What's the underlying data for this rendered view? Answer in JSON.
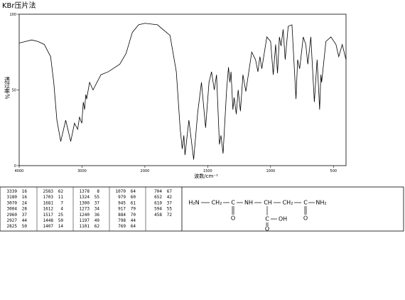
{
  "chart_data": {
    "type": "line",
    "title": "KBr压片法",
    "xlabel": "波数/cm⁻¹",
    "ylabel": "透过率%",
    "xlim": [
      4000,
      400
    ],
    "xticks": [
      4000,
      3000,
      2000,
      1500,
      1000,
      500
    ],
    "x_scale_break": 2000,
    "ylim": [
      0,
      100
    ],
    "yticks": [
      0,
      50,
      100
    ],
    "grid": false,
    "series": [
      {
        "name": "spectrum",
        "color": "#000000",
        "x": [
          4000,
          3900,
          3800,
          3700,
          3600,
          3500,
          3450,
          3400,
          3339,
          3260,
          3180,
          3120,
          3070,
          3040,
          3004,
          2980,
          2960,
          2940,
          2927,
          2880,
          2825,
          2700,
          2583,
          2400,
          2300,
          2200,
          2100,
          2000,
          1900,
          1800,
          1750,
          1720,
          1703,
          1690,
          1681,
          1650,
          1612,
          1580,
          1550,
          1517,
          1490,
          1470,
          1448,
          1430,
          1407,
          1395,
          1378,
          1350,
          1335,
          1324,
          1315,
          1300,
          1290,
          1273,
          1258,
          1240,
          1220,
          1197,
          1150,
          1120,
          1101,
          1085,
          1070,
          1030,
          1000,
          979,
          960,
          945,
          930,
          917,
          900,
          884,
          860,
          830,
          798,
          785,
          769,
          740,
          720,
          704,
          680,
          652,
          630,
          610,
          600,
          594,
          560,
          520,
          480,
          458,
          430,
          400
        ],
        "values": [
          81,
          82,
          83,
          82,
          80,
          72,
          55,
          30,
          16,
          30,
          16,
          28,
          24,
          32,
          28,
          42,
          37,
          47,
          44,
          55,
          50,
          60,
          62,
          67,
          74,
          88,
          93,
          94,
          93,
          86,
          62,
          25,
          11,
          20,
          7,
          30,
          4,
          35,
          55,
          25,
          55,
          62,
          50,
          60,
          14,
          20,
          8,
          50,
          65,
          55,
          62,
          37,
          45,
          34,
          50,
          36,
          60,
          49,
          75,
          70,
          62,
          72,
          64,
          85,
          82,
          60,
          80,
          61,
          85,
          79,
          90,
          70,
          92,
          93,
          44,
          70,
          64,
          85,
          80,
          67,
          85,
          42,
          70,
          37,
          60,
          55,
          82,
          85,
          80,
          72,
          80,
          70
        ]
      }
    ]
  },
  "table": {
    "rows": [
      [
        3339,
        16
      ],
      [
        3180,
        16
      ],
      [
        3070,
        24
      ],
      [
        3004,
        28
      ],
      [
        2960,
        37
      ],
      [
        2927,
        44
      ],
      [
        2825,
        50
      ],
      [
        2583,
        62
      ],
      [
        1703,
        11
      ],
      [
        1681,
        7
      ],
      [
        1612,
        4
      ],
      [
        1517,
        25
      ],
      [
        1448,
        50
      ],
      [
        1407,
        14
      ],
      [
        1378,
        8
      ],
      [
        1324,
        55
      ],
      [
        1300,
        37
      ],
      [
        1273,
        34
      ],
      [
        1240,
        36
      ],
      [
        1197,
        49
      ],
      [
        1101,
        62
      ],
      [
        1070,
        64
      ],
      [
        979,
        60
      ],
      [
        945,
        61
      ],
      [
        917,
        79
      ],
      [
        884,
        70
      ],
      [
        798,
        44
      ],
      [
        769,
        64
      ],
      [
        704,
        67
      ],
      [
        652,
        42
      ],
      [
        610,
        37
      ],
      [
        594,
        55
      ],
      [
        458,
        72
      ]
    ]
  },
  "structure": {
    "atoms": [
      "H₂N",
      "CH₂",
      "C",
      "NH",
      "CH",
      "CH₂",
      "C",
      "NH₂",
      "O",
      "C",
      "OH",
      "O",
      "O"
    ]
  }
}
